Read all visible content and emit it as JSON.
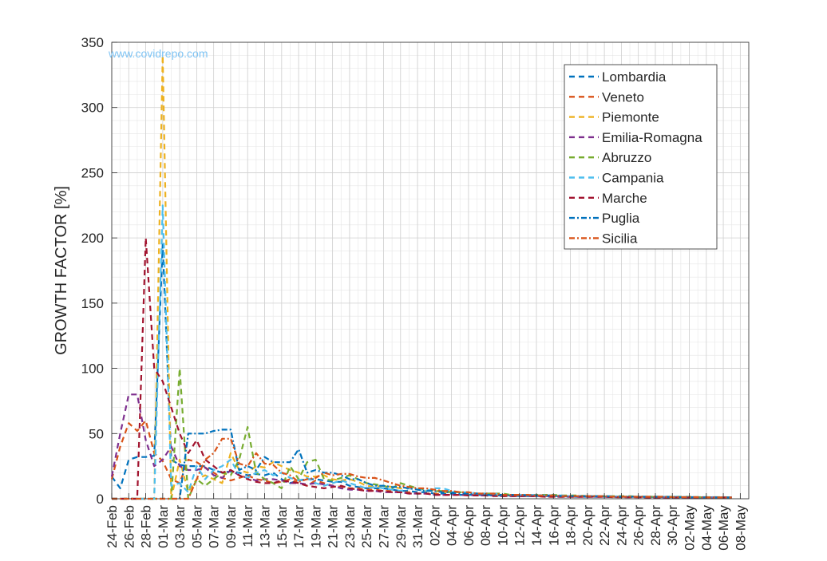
{
  "watermark": "www.covidrepo.com",
  "chart_data": {
    "type": "line",
    "title": "",
    "xlabel": "",
    "ylabel": "GROWTH FACTOR [%]",
    "ylim": [
      0,
      350
    ],
    "yticks": [
      0,
      50,
      100,
      150,
      200,
      250,
      300,
      350
    ],
    "xlim": [
      "2020-02-24",
      "2020-05-09"
    ],
    "xtick_labels": [
      "24-Feb",
      "26-Feb",
      "28-Feb",
      "01-Mar",
      "03-Mar",
      "05-Mar",
      "07-Mar",
      "09-Mar",
      "11-Mar",
      "13-Mar",
      "15-Mar",
      "17-Mar",
      "19-Mar",
      "21-Mar",
      "23-Mar",
      "25-Mar",
      "27-Mar",
      "29-Mar",
      "31-Mar",
      "02-Apr",
      "04-Apr",
      "06-Apr",
      "08-Apr",
      "10-Apr",
      "12-Apr",
      "14-Apr",
      "16-Apr",
      "18-Apr",
      "20-Apr",
      "22-Apr",
      "24-Apr",
      "26-Apr",
      "28-Apr",
      "30-Apr",
      "02-May",
      "04-May",
      "06-May",
      "08-May"
    ],
    "x": [
      "2020-02-24",
      "2020-02-25",
      "2020-02-26",
      "2020-02-27",
      "2020-02-28",
      "2020-02-29",
      "2020-03-01",
      "2020-03-02",
      "2020-03-03",
      "2020-03-04",
      "2020-03-05",
      "2020-03-06",
      "2020-03-07",
      "2020-03-08",
      "2020-03-09",
      "2020-03-10",
      "2020-03-11",
      "2020-03-12",
      "2020-03-13",
      "2020-03-14",
      "2020-03-15",
      "2020-03-16",
      "2020-03-17",
      "2020-03-18",
      "2020-03-19",
      "2020-03-20",
      "2020-03-21",
      "2020-03-22",
      "2020-03-23",
      "2020-03-24",
      "2020-03-25",
      "2020-03-26",
      "2020-03-27",
      "2020-03-28",
      "2020-03-29",
      "2020-03-30",
      "2020-03-31",
      "2020-04-01",
      "2020-04-02",
      "2020-04-03",
      "2020-04-04",
      "2020-04-05",
      "2020-04-06",
      "2020-04-07",
      "2020-04-08",
      "2020-04-09",
      "2020-04-10",
      "2020-04-11",
      "2020-04-12",
      "2020-04-13",
      "2020-04-14",
      "2020-04-15",
      "2020-04-16",
      "2020-04-17",
      "2020-04-18",
      "2020-04-19",
      "2020-04-20",
      "2020-04-21",
      "2020-04-22",
      "2020-04-23",
      "2020-04-24",
      "2020-04-25",
      "2020-04-26",
      "2020-04-27",
      "2020-04-28",
      "2020-04-29",
      "2020-04-30",
      "2020-05-01",
      "2020-05-02",
      "2020-05-03",
      "2020-05-04",
      "2020-05-05",
      "2020-05-06",
      "2020-05-07"
    ],
    "grid": true,
    "minor_grid": true,
    "legend_position": "top-right",
    "series": [
      {
        "name": "Lombardia",
        "color": "#0072BD",
        "dash": "dashed",
        "values": [
          17,
          8,
          30,
          32,
          32,
          33,
          195,
          30,
          26,
          25,
          25,
          25,
          22,
          20,
          21,
          20,
          18,
          19,
          18,
          20,
          15,
          12,
          14,
          15,
          15,
          14,
          13,
          13,
          10,
          9,
          8,
          8,
          8,
          7,
          6,
          6,
          5,
          5,
          4,
          4,
          4,
          3,
          3,
          3,
          3,
          2.5,
          2.5,
          2.5,
          2,
          2,
          2,
          2,
          2,
          2,
          1.5,
          1.5,
          1.5,
          1.5,
          1.5,
          1.5,
          1.5,
          1.5,
          1.5,
          1.5,
          1.2,
          1.2,
          1.2,
          1.2,
          1,
          1,
          1,
          1,
          1,
          1
        ]
      },
      {
        "name": "Veneto",
        "color": "#D95319",
        "dash": "dashed",
        "values": [
          15,
          40,
          58,
          52,
          60,
          35,
          29,
          15,
          12,
          30,
          28,
          24,
          20,
          16,
          14,
          16,
          18,
          15,
          14,
          12,
          13,
          15,
          12,
          10,
          14,
          12,
          10,
          9,
          8,
          8,
          7,
          7,
          6,
          6,
          5,
          5,
          4,
          4,
          4,
          3,
          3,
          3,
          3,
          2.5,
          2.5,
          2.5,
          2,
          2,
          2,
          2,
          2,
          1.5,
          1.5,
          1.5,
          1.5,
          1.5,
          1.5,
          1.5,
          1.5,
          1.2,
          1.2,
          1.2,
          1.2,
          1,
          1,
          1,
          1,
          1,
          1,
          1,
          1,
          1,
          1,
          1
        ]
      },
      {
        "name": "Piemonte",
        "color": "#EDB120",
        "dash": "dashed",
        "values": [
          0,
          0,
          0,
          0,
          0,
          0,
          340,
          0,
          30,
          5,
          15,
          18,
          15,
          12,
          35,
          22,
          20,
          25,
          24,
          28,
          25,
          22,
          20,
          17,
          17,
          18,
          15,
          14,
          15,
          13,
          10,
          9,
          10,
          9,
          8,
          8,
          7,
          6,
          6,
          5,
          5,
          5,
          4,
          4,
          4,
          3,
          3,
          3,
          3,
          3,
          2.5,
          2.5,
          2.5,
          2,
          2,
          2,
          2,
          2,
          2,
          2,
          1.5,
          1.5,
          1.5,
          1.5,
          1.5,
          1.5,
          1.5,
          1.5,
          1.2,
          1.2,
          1.2,
          1,
          1,
          1
        ]
      },
      {
        "name": "Emilia-Romagna",
        "color": "#7E2F8E",
        "dash": "dashed",
        "values": [
          17,
          50,
          80,
          80,
          45,
          25,
          30,
          40,
          25,
          22,
          22,
          24,
          18,
          16,
          22,
          18,
          16,
          14,
          15,
          15,
          14,
          12,
          12,
          11,
          12,
          11,
          10,
          8,
          7,
          7,
          6,
          6,
          5,
          5,
          5,
          4,
          4,
          4,
          3,
          3,
          3,
          3,
          3,
          2.5,
          2.5,
          2.5,
          2,
          2,
          2,
          2,
          2,
          2,
          1.5,
          1.5,
          1.5,
          1.5,
          1.5,
          1.5,
          1.5,
          1.5,
          1.2,
          1.2,
          1.2,
          1.2,
          1,
          1,
          1,
          1,
          1,
          1,
          1,
          1,
          1,
          1
        ]
      },
      {
        "name": "Abruzzo",
        "color": "#77AC30",
        "dash": "dashed",
        "values": [
          0,
          0,
          0,
          0,
          0,
          0,
          0,
          0,
          100,
          0,
          15,
          10,
          15,
          20,
          18,
          30,
          55,
          20,
          15,
          12,
          8,
          25,
          15,
          28,
          30,
          15,
          14,
          16,
          18,
          15,
          12,
          11,
          10,
          8,
          12,
          10,
          8,
          7,
          6,
          6,
          5,
          5,
          5,
          4,
          4,
          4,
          4,
          3,
          3,
          3,
          3,
          3,
          3,
          2.5,
          2.5,
          2.5,
          2,
          2,
          2,
          2,
          2,
          2,
          1.5,
          1.5,
          1.5,
          1.5,
          1.5,
          1.5,
          1.5,
          1.2,
          1.2,
          1.2,
          1.2,
          1
        ]
      },
      {
        "name": "Campania",
        "color": "#4DBEEE",
        "dash": "dashed",
        "values": [
          0,
          0,
          0,
          0,
          0,
          0,
          225,
          10,
          12,
          5,
          25,
          15,
          22,
          25,
          30,
          18,
          16,
          20,
          22,
          18,
          20,
          16,
          14,
          16,
          12,
          10,
          12,
          14,
          12,
          10,
          8,
          9,
          8,
          7,
          6,
          8,
          7,
          6,
          8,
          8,
          6,
          5,
          5,
          4,
          4,
          4,
          3,
          3,
          3,
          3,
          3,
          2.5,
          2.5,
          2.5,
          2,
          2,
          2,
          2,
          2,
          2,
          1.5,
          1.5,
          1.5,
          1.5,
          1.5,
          1.5,
          1.5,
          1.5,
          1.2,
          1.2,
          1.2,
          1.2,
          1,
          1
        ]
      },
      {
        "name": "Marche",
        "color": "#A2142F",
        "dash": "dashed",
        "values": [
          0,
          0,
          0,
          0,
          200,
          100,
          90,
          70,
          50,
          35,
          45,
          30,
          25,
          20,
          22,
          18,
          15,
          13,
          12,
          12,
          14,
          13,
          12,
          10,
          9,
          8,
          9,
          10,
          8,
          7,
          6,
          6,
          6,
          5,
          5,
          4,
          4,
          4,
          3,
          3,
          3,
          3,
          2.5,
          2.5,
          2.5,
          2,
          2,
          2,
          2,
          2,
          2,
          1.5,
          1.5,
          1.5,
          1.5,
          1.5,
          1.5,
          1.5,
          1.5,
          1.2,
          1.2,
          1.2,
          1.2,
          1,
          1,
          1,
          1,
          1,
          1,
          1,
          1,
          1,
          1,
          1
        ]
      },
      {
        "name": "Puglia",
        "color": "#0072BD",
        "dash": "dashdot",
        "values": [
          0,
          0,
          0,
          0,
          0,
          0,
          0,
          0,
          0,
          50,
          50,
          50,
          52,
          53,
          53,
          22,
          25,
          22,
          32,
          28,
          28,
          28,
          38,
          20,
          22,
          20,
          20,
          18,
          15,
          15,
          12,
          10,
          10,
          9,
          9,
          8,
          7,
          6,
          6,
          5,
          5,
          4,
          4,
          4,
          3,
          3,
          3,
          3,
          3,
          2.5,
          2.5,
          2.5,
          2.5,
          2,
          2,
          2,
          2,
          2,
          2,
          1.5,
          1.5,
          1.5,
          1.5,
          1.5,
          1.5,
          1.5,
          1.2,
          1.2,
          1.2,
          1.2,
          1,
          1,
          1,
          1
        ]
      },
      {
        "name": "Sicilia",
        "color": "#D95319",
        "dash": "dashdot",
        "values": [
          0,
          0,
          0,
          0,
          0,
          0,
          0,
          0,
          0,
          0,
          15,
          30,
          35,
          46,
          46,
          27,
          25,
          35,
          27,
          26,
          20,
          18,
          13,
          15,
          16,
          20,
          18,
          19,
          19,
          17,
          16,
          16,
          14,
          12,
          10,
          9,
          8,
          8,
          7,
          6,
          6,
          5,
          5,
          4,
          4,
          4,
          3,
          3,
          3,
          3,
          2.5,
          2.5,
          2.5,
          2,
          2,
          2,
          2,
          2,
          2,
          1.5,
          1.5,
          1.5,
          1.5,
          1.5,
          1.5,
          1.5,
          1.2,
          1.2,
          1.2,
          1.2,
          1,
          1,
          1,
          1
        ]
      }
    ]
  }
}
